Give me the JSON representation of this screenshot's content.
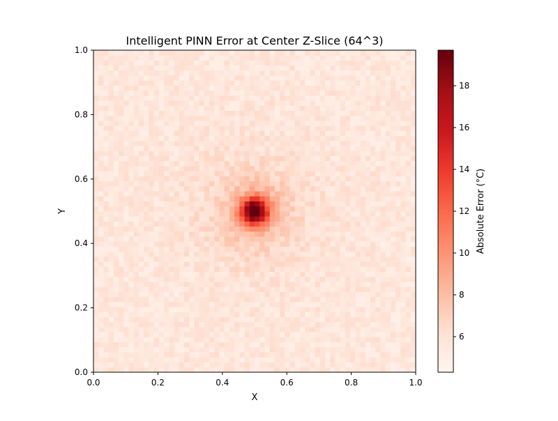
{
  "chart_data": {
    "type": "heatmap",
    "title": "Intelligent PINN Error at Center Z-Slice (64^3)",
    "xlabel": "X",
    "ylabel": "Y",
    "xlim": [
      0.0,
      1.0
    ],
    "ylim": [
      0.0,
      1.0
    ],
    "x_ticks": [
      "0.0",
      "0.2",
      "0.4",
      "0.6",
      "0.8",
      "1.0"
    ],
    "y_ticks": [
      "0.0",
      "0.2",
      "0.4",
      "0.6",
      "0.8",
      "1.0"
    ],
    "grid_resolution": [
      64,
      64
    ],
    "colormap": "Reds",
    "colorbar": {
      "label": "Absolute Error (°C)",
      "vmin": 4.3,
      "vmax": 19.7,
      "ticks": [
        6,
        8,
        10,
        12,
        14,
        16,
        18
      ]
    },
    "field": {
      "description": "baseline error with a localized peak",
      "baseline": 6.0,
      "peak_center": [
        0.5,
        0.5
      ],
      "peak_max": 19.7,
      "noise_amplitude": 0.8
    },
    "grid": false
  },
  "colors": {
    "cmap_low": "#fff5f0",
    "cmap_high": "#67000d"
  }
}
